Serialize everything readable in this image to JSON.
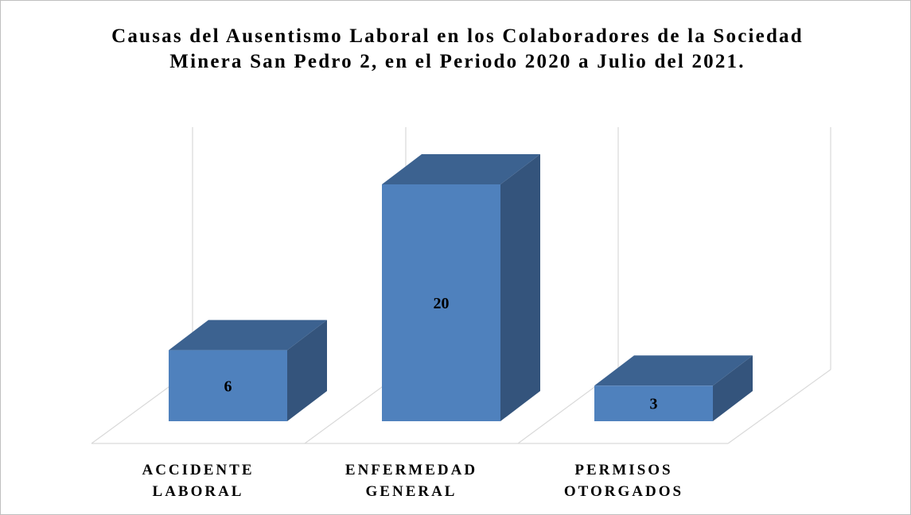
{
  "chart_data": {
    "type": "bar3d",
    "title": "Causas del Ausentismo Laboral en los Colaboradores de la Sociedad Minera San Pedro 2, en el Periodo 2020 a Julio del 2021.",
    "categories": [
      "ACCIDENTE LABORAL",
      "ENFERMEDAD GENERAL",
      "PERMISOS OTORGADOS"
    ],
    "values": [
      6,
      20,
      3
    ],
    "color": "#4f81bd",
    "ylim": [
      0,
      20
    ]
  }
}
